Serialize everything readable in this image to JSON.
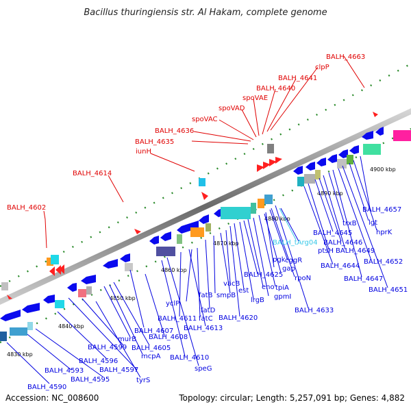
{
  "title": "Bacillus thuringiensis str. Al Hakam, complete genome",
  "footer": {
    "accession": "Accession: NC_008600",
    "summary": "Topology: circular; Length: 5,257,091 bp; Genes: 4,882"
  },
  "ticks": [
    "4830 kbp",
    "4840 kbp",
    "4850 kbp",
    "4860 kbp",
    "4870 kbp",
    "4880 kbp",
    "4890 kbp",
    "4900 kbp"
  ],
  "labels_above": [
    "BALH_4602",
    "BALH_4614",
    "iunH",
    "BALH_4635",
    "BALH_4636",
    "spoVAC",
    "spoVAD",
    "spoVAE",
    "BALH_4640",
    "BALH_4641",
    "clpP",
    "BALH_4663"
  ],
  "labels_below": [
    "BALH_4590",
    "BALH_4593",
    "BALH_4595",
    "BALH_4596",
    "BALH_4597",
    "tyrS",
    "BALH_4599",
    "murB",
    "mcpA",
    "BALH_4605",
    "BALH_4607",
    "BALH_4608",
    "BALH_4610",
    "speG",
    "BALH_4611",
    "BALH_4613",
    "yclP",
    "fatC",
    "fatD",
    "fatB",
    "smpB",
    "vacB",
    "BALH_4620",
    "est",
    "lrgB",
    "BALH_4625",
    "eno",
    "gpmI",
    "pgk",
    "tpiA",
    "gap",
    "cggR",
    "rpoN",
    "BALH_4633",
    "BALH_tArg04",
    "BALH_4644",
    "ptsH",
    "BALH_4645",
    "BALH_4646",
    "BALH_4649",
    "trxB",
    "BALH_4647",
    "BALH_4652",
    "BALH_4651",
    "lgt",
    "hprK",
    "BALH_4657"
  ],
  "colors": {
    "above_label": "#e00000",
    "below_label": "#0000e0",
    "trna_label": "#38c8e8",
    "forward_gene": "#ff0000",
    "reverse_gene": "#0000ee",
    "backbone": "#888888"
  }
}
